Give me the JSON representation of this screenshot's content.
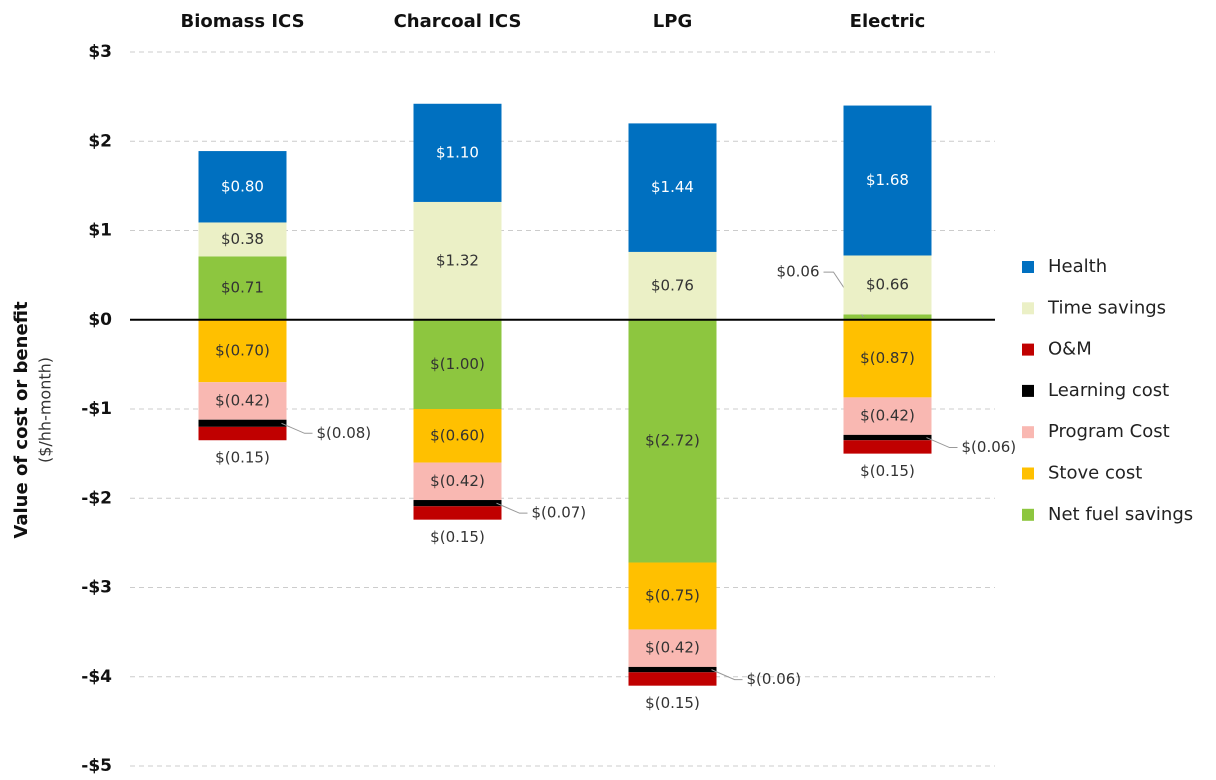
{
  "chart_data": {
    "type": "stacked_bar",
    "y_label": "Value of cost or benefit",
    "y_sublabel": "($/hh-month)",
    "categories": [
      "Biomass ICS",
      "Charcoal ICS",
      "LPG",
      "Electric"
    ],
    "ylim": [
      -5,
      3
    ],
    "yticks": [
      {
        "value": -5,
        "label": "-$5"
      },
      {
        "value": -4,
        "label": "-$4"
      },
      {
        "value": -3,
        "label": "-$3"
      },
      {
        "value": -2,
        "label": "-$2"
      },
      {
        "value": -1,
        "label": "-$1"
      },
      {
        "value": 0,
        "label": "$0"
      },
      {
        "value": 1,
        "label": "$1"
      },
      {
        "value": 2,
        "label": "$2"
      },
      {
        "value": 3,
        "label": "$3"
      }
    ],
    "grid": true,
    "legend": "right",
    "series": [
      {
        "name": "Health",
        "color": "#0070c0",
        "values": [
          0.8,
          1.1,
          1.44,
          1.68
        ],
        "value_labels": [
          "$0.80",
          "$1.10",
          "$1.44",
          "$1.68"
        ]
      },
      {
        "name": "Time savings",
        "color": "#ebf0c6",
        "values": [
          0.38,
          1.32,
          0.76,
          0.66
        ],
        "value_labels": [
          "$0.38",
          "$1.32",
          "$0.76",
          "$0.66"
        ]
      },
      {
        "name": "O&M",
        "color": "#c00000",
        "values": [
          -0.15,
          -0.15,
          -0.15,
          -0.15
        ],
        "value_labels": [
          "$(0.15)",
          "$(0.15)",
          "$(0.15)",
          "$(0.15)"
        ]
      },
      {
        "name": "Learning cost",
        "color": "#000000",
        "values": [
          -0.08,
          -0.07,
          -0.06,
          -0.06
        ],
        "value_labels": [
          "$(0.08)",
          "$(0.07)",
          "$(0.06)",
          "$(0.06)"
        ]
      },
      {
        "name": "Program Cost",
        "color": "#f9b8b2",
        "values": [
          -0.42,
          -0.42,
          -0.42,
          -0.42
        ],
        "value_labels": [
          "$(0.42)",
          "$(0.42)",
          "$(0.42)",
          "$(0.42)"
        ]
      },
      {
        "name": "Stove cost",
        "color": "#ffc000",
        "values": [
          -0.7,
          -0.6,
          -0.75,
          -0.87
        ],
        "value_labels": [
          "$(0.70)",
          "$(0.60)",
          "$(0.75)",
          "$(0.87)"
        ]
      },
      {
        "name": "Net fuel savings",
        "color": "#8dc63f",
        "values": [
          0.71,
          -1.0,
          -2.72,
          0.06
        ],
        "value_labels": [
          "$0.71",
          "$(1.00)",
          "$(2.72)",
          "$0.06"
        ]
      }
    ]
  }
}
